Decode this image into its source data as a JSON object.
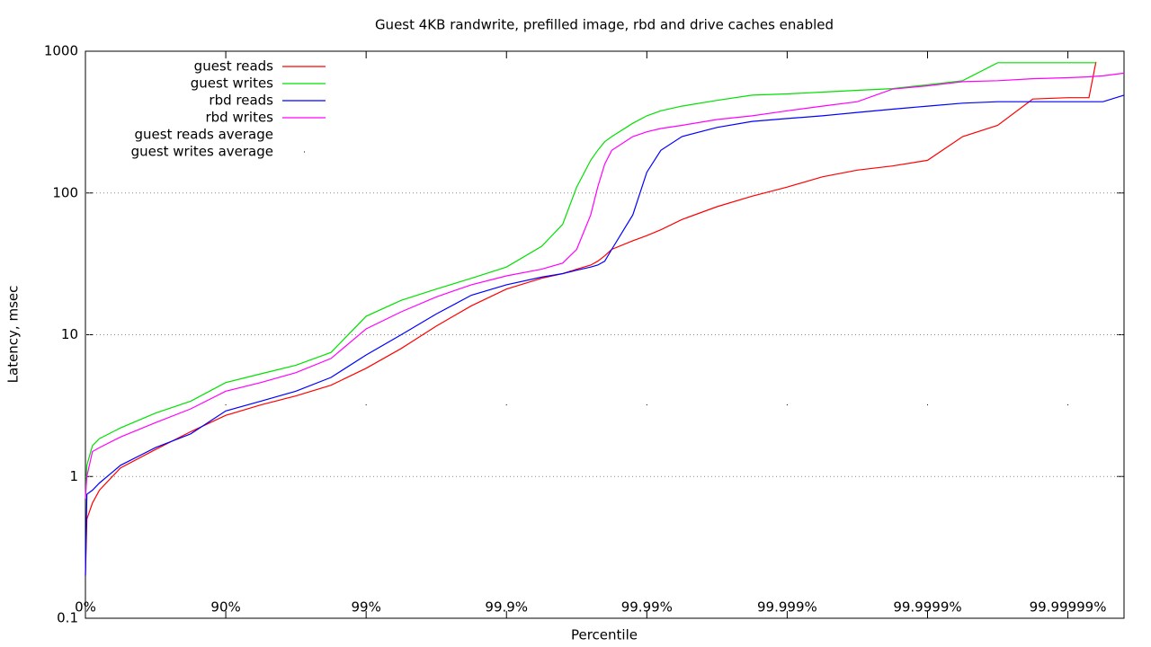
{
  "chart_data": {
    "type": "line",
    "title": "Guest 4KB randwrite, prefilled image, rbd and drive caches enabled",
    "x_label": "Percentile",
    "y_label": "Latency, msec",
    "y_log": true,
    "grid": "y-dotted",
    "legend": "top-left",
    "xlim": [
      0,
      7.4
    ],
    "ylim": [
      0.1,
      1000
    ],
    "xticks": [
      {
        "value": 0,
        "label": "0%"
      },
      {
        "value": 1,
        "label": "90%"
      },
      {
        "value": 2,
        "label": "99%"
      },
      {
        "value": 3,
        "label": "99.9%"
      },
      {
        "value": 4,
        "label": "99.99%"
      },
      {
        "value": 5,
        "label": "99.999%"
      },
      {
        "value": 6,
        "label": "99.9999%"
      },
      {
        "value": 7,
        "label": "99.99999%"
      }
    ],
    "yticks": [
      0.1,
      1,
      10,
      100,
      1000
    ],
    "x": [
      0,
      0.01,
      0.05,
      0.1,
      0.25,
      0.5,
      0.75,
      1,
      1.25,
      1.5,
      1.75,
      2,
      2.25,
      2.5,
      2.75,
      3,
      3.25,
      3.4,
      3.5,
      3.6,
      3.65,
      3.7,
      3.75,
      3.9,
      4,
      4.1,
      4.25,
      4.5,
      4.75,
      5,
      5.25,
      5.5,
      5.75,
      6,
      6.25,
      6.5,
      6.75,
      7,
      7.15,
      7.2,
      7.25,
      7.4
    ],
    "series": [
      {
        "name": "guest reads",
        "color": "#ff0000",
        "style": "line",
        "values": [
          0.2,
          0.5,
          0.65,
          0.8,
          1.15,
          1.55,
          2.07,
          2.7,
          3.2,
          3.7,
          4.4,
          5.8,
          8,
          11.5,
          16,
          21,
          25,
          27,
          29,
          31,
          33,
          36,
          40,
          46,
          50,
          55,
          65,
          80,
          95,
          110,
          130,
          145,
          155,
          170,
          250,
          300,
          460,
          470,
          470,
          840,
          null,
          null
        ]
      },
      {
        "name": "guest writes",
        "color": "#00e000",
        "style": "line",
        "values": [
          0.7,
          1.2,
          1.65,
          1.85,
          2.2,
          2.8,
          3.4,
          4.6,
          5.3,
          6.1,
          7.5,
          13.5,
          17.5,
          21,
          25,
          30,
          42,
          60,
          110,
          170,
          200,
          230,
          250,
          310,
          350,
          380,
          410,
          450,
          490,
          500,
          515,
          530,
          545,
          580,
          620,
          830,
          830,
          830,
          830,
          830,
          null,
          null
        ]
      },
      {
        "name": "rbd reads",
        "color": "#0000ff",
        "style": "line",
        "values": [
          0.2,
          0.75,
          0.8,
          0.9,
          1.2,
          1.6,
          2.0,
          2.9,
          3.4,
          4.0,
          5.0,
          7.2,
          10,
          14,
          19,
          22.5,
          25.5,
          27,
          28.5,
          30,
          31,
          33,
          40,
          70,
          140,
          200,
          250,
          290,
          320,
          335,
          350,
          370,
          390,
          410,
          430,
          440,
          440,
          440,
          440,
          440,
          440,
          490
        ]
      },
      {
        "name": "rbd writes",
        "color": "#ff00ff",
        "style": "line",
        "values": [
          0.7,
          1.0,
          1.5,
          1.6,
          1.9,
          2.4,
          3.0,
          4.0,
          4.6,
          5.4,
          6.8,
          11,
          14.5,
          18.5,
          22.5,
          26,
          29,
          32,
          40,
          70,
          110,
          160,
          200,
          250,
          270,
          285,
          300,
          330,
          350,
          380,
          410,
          440,
          540,
          570,
          610,
          620,
          640,
          650,
          660,
          665,
          670,
          700
        ]
      },
      {
        "name": "guest reads average",
        "color": "#ffffff",
        "style": "dots",
        "values": [
          null,
          null,
          null,
          null,
          null,
          null,
          null,
          null,
          null,
          null,
          null,
          null,
          null,
          null,
          null,
          null,
          null,
          null,
          null,
          null,
          null,
          null,
          null,
          null,
          null,
          null,
          null,
          null,
          null,
          null,
          null,
          null,
          null,
          null,
          null,
          null,
          null,
          null,
          null,
          null,
          null,
          null
        ]
      },
      {
        "name": "guest writes average",
        "color": "#000000",
        "style": "dots",
        "values": [
          null,
          null,
          null,
          null,
          null,
          null,
          null,
          3.2,
          null,
          null,
          null,
          3.2,
          null,
          null,
          null,
          3.2,
          null,
          null,
          null,
          null,
          null,
          null,
          null,
          null,
          3.2,
          null,
          null,
          null,
          null,
          3.2,
          null,
          null,
          null,
          3.2,
          null,
          null,
          null,
          3.2,
          null,
          null,
          null,
          null
        ]
      }
    ]
  }
}
